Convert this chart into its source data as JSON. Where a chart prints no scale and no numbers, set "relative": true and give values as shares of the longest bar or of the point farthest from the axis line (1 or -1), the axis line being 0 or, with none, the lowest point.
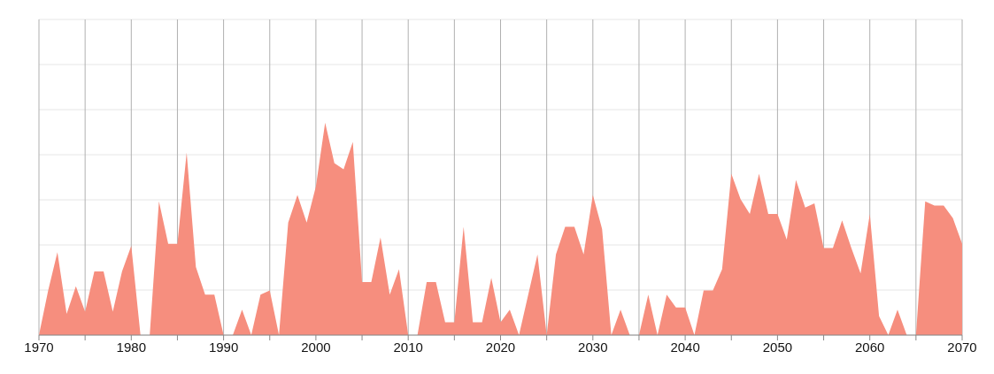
{
  "chart_data": {
    "type": "area",
    "relative": true,
    "grid": true,
    "x": [
      1970,
      1971,
      1972,
      1973,
      1974,
      1975,
      1976,
      1977,
      1978,
      1979,
      1980,
      1981,
      1982,
      1983,
      1984,
      1985,
      1986,
      1987,
      1988,
      1989,
      1990,
      1991,
      1992,
      1993,
      1994,
      1995,
      1996,
      1997,
      1998,
      1999,
      2000,
      2001,
      2002,
      2003,
      2004,
      2005,
      2006,
      2007,
      2008,
      2009,
      2010,
      2011,
      2012,
      2013,
      2014,
      2015,
      2016,
      2017,
      2018,
      2019,
      2020,
      2021,
      2022,
      2023,
      2024,
      2025,
      2026,
      2027,
      2028,
      2029,
      2030,
      2031,
      2032,
      2033,
      2034,
      2035,
      2036,
      2037,
      2038,
      2039,
      2040,
      2041,
      2042,
      2043,
      2044,
      2045,
      2046,
      2047,
      2048,
      2049,
      2050,
      2051,
      2052,
      2053,
      2054,
      2055,
      2056,
      2057,
      2058,
      2059,
      2060,
      2061,
      2062,
      2063,
      2064,
      2065,
      2066,
      2067,
      2068,
      2069,
      2070
    ],
    "series": [
      {
        "color": "#f68e7e",
        "values": [
          0,
          0.21,
          0.39,
          0.1,
          0.23,
          0.11,
          0.3,
          0.3,
          0.11,
          0.3,
          0.42,
          0,
          0,
          0.63,
          0.43,
          0.43,
          0.86,
          0.32,
          0.19,
          0.19,
          0,
          0,
          0.12,
          0,
          0.19,
          0.21,
          0,
          0.53,
          0.66,
          0.53,
          0.7,
          1,
          0.81,
          0.78,
          0.91,
          0.25,
          0.25,
          0.46,
          0.19,
          0.31,
          0,
          0,
          0.25,
          0.25,
          0.06,
          0.06,
          0.51,
          0.06,
          0.06,
          0.27,
          0.06,
          0.12,
          0,
          0.19,
          0.38,
          0,
          0.38,
          0.51,
          0.51,
          0.38,
          0.66,
          0.5,
          0,
          0.12,
          0,
          0,
          0.19,
          0,
          0.19,
          0.13,
          0.13,
          0,
          0.21,
          0.21,
          0.31,
          0.76,
          0.64,
          0.57,
          0.76,
          0.57,
          0.57,
          0.45,
          0.73,
          0.6,
          0.62,
          0.41,
          0.41,
          0.54,
          0.41,
          0.29,
          0.57,
          0.09,
          0,
          0.12,
          0,
          0,
          0.63,
          0.61,
          0.61,
          0.55,
          0.43
        ]
      }
    ],
    "xlim": [
      1970,
      2070
    ],
    "xticks": [
      1970,
      {
        "value": 1975,
        "label": null
      },
      1980,
      {
        "value": 1985,
        "label": null
      },
      1990,
      {
        "value": 1995,
        "label": null
      },
      2000,
      {
        "value": 2005,
        "label": null
      },
      2010,
      {
        "value": 2015,
        "label": null
      },
      2020,
      {
        "value": 2025,
        "label": null
      },
      2030,
      {
        "value": 2035,
        "label": null
      },
      2040,
      {
        "value": 2045,
        "label": null
      },
      2050,
      {
        "value": 2055,
        "label": null
      },
      2060,
      {
        "value": 2065,
        "label": null
      },
      2070
    ]
  }
}
